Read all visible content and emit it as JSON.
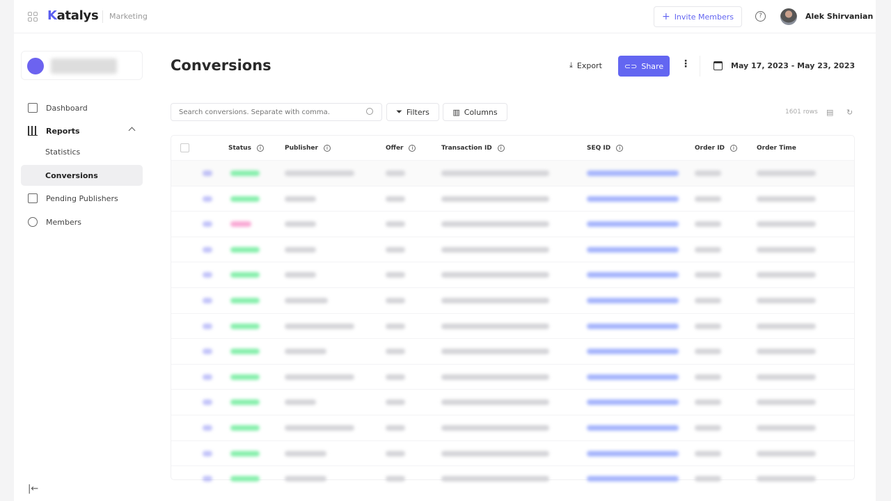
{
  "app": {
    "brand_prefix": "K",
    "brand_rest": "atalys",
    "workspace": "Marketing"
  },
  "header": {
    "invite_label": "Invite Members",
    "help": "?",
    "user_name": "Alek Shirvanian"
  },
  "sidebar": {
    "items": [
      {
        "label": "Dashboard",
        "icon": "dashboard-icon"
      },
      {
        "label": "Reports",
        "icon": "bar-chart-icon",
        "expanded": true
      },
      {
        "label": "Statistics",
        "sub": true
      },
      {
        "label": "Conversions",
        "sub": true,
        "active": true
      },
      {
        "label": "Pending Publishers",
        "icon": "list-icon"
      },
      {
        "label": "Members",
        "icon": "user-circle-icon"
      }
    ],
    "collapse": "|←"
  },
  "page": {
    "title": "Conversions",
    "export_label": "Export",
    "share_label": "Share",
    "date_range": "May 17, 2023 - May 23, 2023"
  },
  "toolbar": {
    "search_placeholder": "Search conversions. Separate with comma.",
    "filters_label": "Filters",
    "columns_label": "Columns",
    "row_count": "1601 rows"
  },
  "table": {
    "columns": [
      "Status",
      "Publisher",
      "Offer",
      "Transaction ID",
      "SEQ ID",
      "Order ID",
      "Order Time"
    ],
    "rows": [
      "success",
      "success",
      "rejected",
      "success",
      "success",
      "success",
      "success",
      "success",
      "success",
      "success",
      "success",
      "success",
      "success"
    ]
  },
  "colors": {
    "accent": "#6366f1",
    "success": "#86efac",
    "rejected": "#f9a8d4",
    "link": "#a5b4fc"
  }
}
